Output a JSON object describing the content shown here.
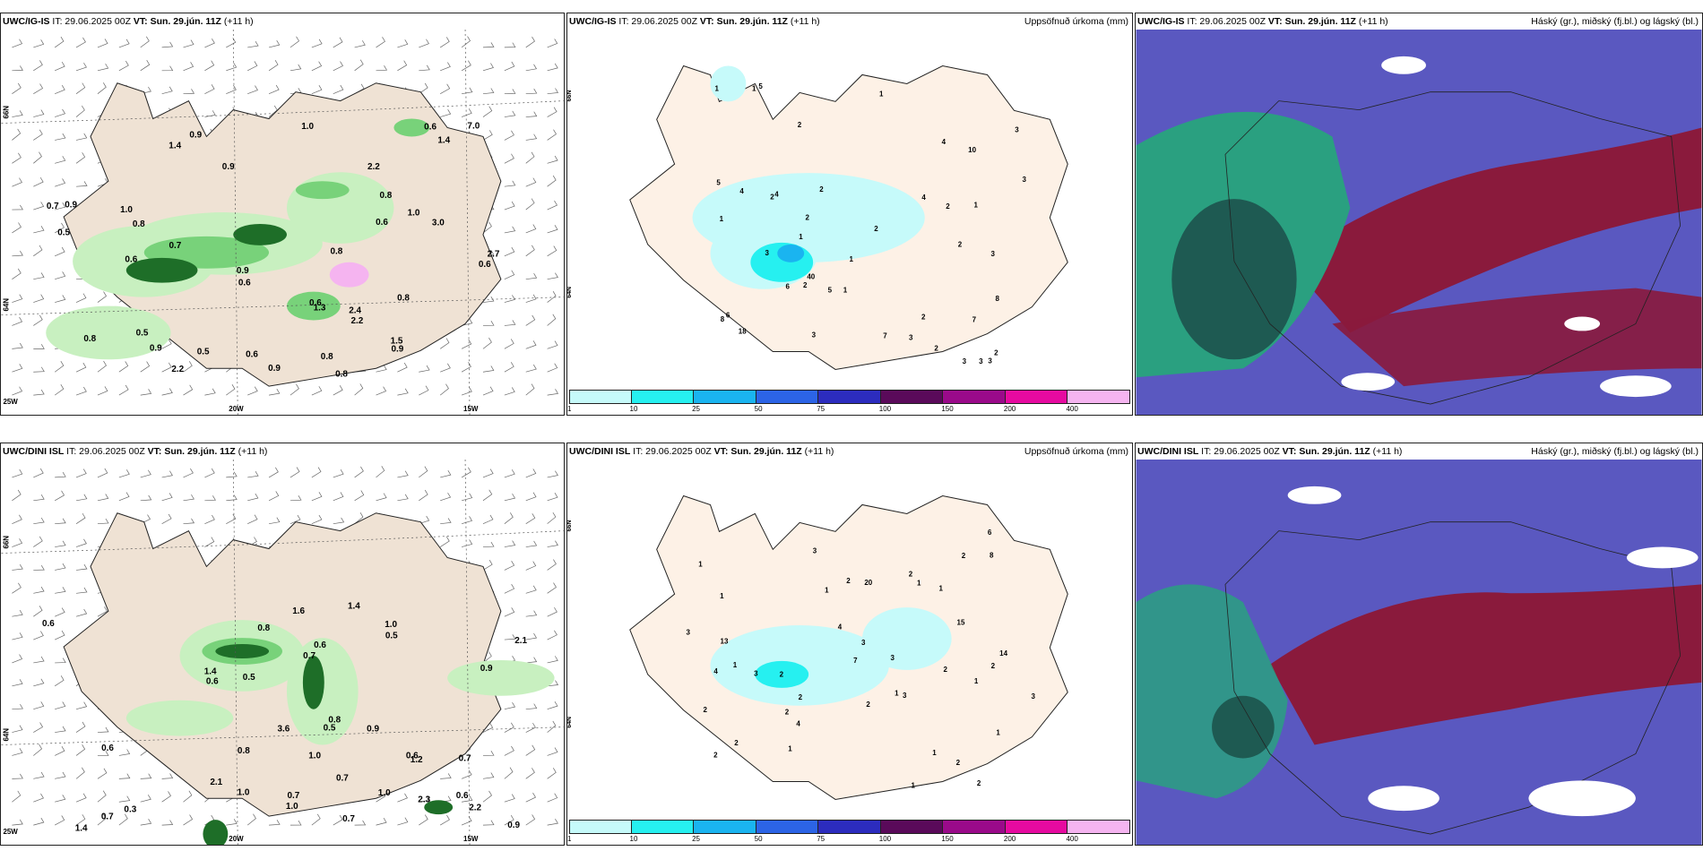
{
  "rows": [
    {
      "model": "UWC/IG-IS",
      "it": "IT: 29.06.2025 00Z",
      "vt_label": "VT:",
      "vt": "Sun. 29.jún. 11Z",
      "lead": "(+11 h)",
      "wind_labels": [
        "0.8",
        "1.4",
        "0.5",
        "1.0",
        "1.0",
        "0.8",
        "0.6",
        "0.7",
        "0.6",
        "0.9",
        "0.8",
        "0.7",
        "0.9",
        "0.6",
        "0.6",
        "0.6",
        "0.5",
        "1.4",
        "0.8",
        "3.0",
        "1.5",
        "1.3",
        "2.2",
        "0.9",
        "0.8",
        "0.8",
        "0.6",
        "0.8",
        "0.9",
        "0.9",
        "2.2",
        "7.0",
        "2.2",
        "0.5",
        "0.9",
        "0.6",
        "1.0",
        "0.9",
        "2.7",
        "2.4"
      ],
      "precip_labels": [
        "1",
        "2",
        "1",
        "2",
        "3",
        "2",
        "1",
        "1",
        "2",
        "2",
        "1",
        "1",
        "1",
        "3",
        "2",
        "2",
        "2",
        "3",
        "3",
        "2",
        "3",
        "4",
        "3",
        "6",
        "7",
        "4",
        "7",
        "6",
        "10",
        "8",
        "40",
        "5",
        "18",
        "8",
        "4",
        "5",
        "4",
        "5",
        "3",
        "3",
        "1",
        "2",
        "3",
        "2"
      ],
      "precip_title": "Uppsöfnuð úrkoma (mm)",
      "cloud_title": "Háský (gr.), miðský (fj.bl.) og lágský (bl.)",
      "lon_labels": [
        "20W",
        "15W",
        "25W"
      ],
      "lat_labels": [
        "66N",
        "64N"
      ]
    },
    {
      "model": "UWC/DINI ISL",
      "it": "IT: 29.06.2025 00Z",
      "vt_label": "VT:",
      "vt": "Sun. 29.jún. 11Z",
      "lead": "(+11 h)",
      "wind_labels": [
        "0.7",
        "0.7",
        "0.8",
        "1.0",
        "0.8",
        "1.4",
        "0.6",
        "1.0",
        "2.3",
        "2.1",
        "0.9",
        "0.6",
        "1.0",
        "1.6",
        "1.0",
        "1.4",
        "0.6",
        "0.6",
        "3.6",
        "2.1",
        "0.6",
        "0.3",
        "1.0",
        "0.9",
        "1.2",
        "0.5",
        "0.5",
        "0.7",
        "0.9",
        "0.7",
        "2.2",
        "0.8",
        "0.6",
        "1.4",
        "0.5",
        "0.7",
        "0.7"
      ],
      "precip_labels": [
        "2",
        "1",
        "1",
        "1",
        "1",
        "1",
        "2",
        "2",
        "1",
        "2",
        "1",
        "2",
        "4",
        "3",
        "3",
        "2",
        "2",
        "3",
        "3",
        "2",
        "6",
        "20",
        "15",
        "3",
        "14",
        "13",
        "3",
        "7",
        "4",
        "8",
        "3",
        "4",
        "2",
        "2",
        "1",
        "1",
        "2",
        "1",
        "2",
        "1",
        "2",
        "2",
        "1"
      ],
      "precip_title": "Uppsöfnuð úrkoma (mm)",
      "cloud_title": "Háský (gr.), miðský (fj.bl.) og lágský (bl.)",
      "lon_labels": [
        "20W",
        "15W",
        "25W"
      ],
      "lat_labels": [
        "66N",
        "64N"
      ]
    }
  ],
  "colorbar": {
    "ticks": [
      "1",
      "10",
      "25",
      "50",
      "75",
      "100",
      "150",
      "200",
      "400"
    ],
    "colors": [
      "#c6fafa",
      "#26f0f0",
      "#1ab4f0",
      "#2c64e6",
      "#2c2cbe",
      "#5a0a5a",
      "#9a0a8a",
      "#e60aa0",
      "#f5b4f0"
    ]
  },
  "colors": {
    "land": "#efe2d4",
    "land_precip": "#fdf1e6",
    "light_green": "#c8f0c0",
    "mid_green": "#78d27a",
    "dark_green": "#1e6e28",
    "cloud_blue": "#5a58c0",
    "cloud_red": "#8a1a3c",
    "cloud_green": "#2aa080"
  }
}
